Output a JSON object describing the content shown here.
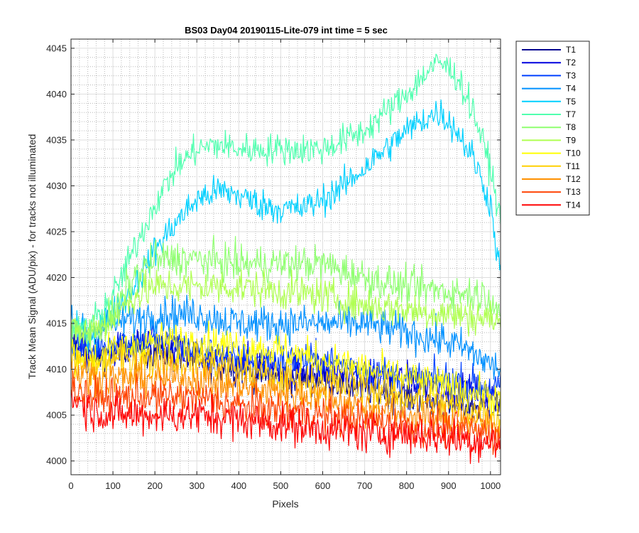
{
  "chart_data": {
    "type": "line",
    "title": "BS03 Day04 20190115-Lite-079 int time = 5 sec",
    "xlabel": "Pixels",
    "ylabel": "Track Mean Signal (ADU/pix) - for tracks not illuminated",
    "xlim": [
      0,
      1024
    ],
    "ylim": [
      3998.5,
      4046
    ],
    "xticks": [
      0,
      100,
      200,
      300,
      400,
      500,
      600,
      700,
      800,
      900,
      1000
    ],
    "yticks": [
      4000,
      4005,
      4010,
      4015,
      4020,
      4025,
      4030,
      4035,
      4040,
      4045
    ],
    "grid": "major and minor",
    "legend_position": "outside-top-right",
    "series": [
      {
        "name": "T1",
        "color": "#00008f",
        "noise": 1.3,
        "points": [
          [
            0,
            4013
          ],
          [
            50,
            4011
          ],
          [
            100,
            4012
          ],
          [
            200,
            4012
          ],
          [
            300,
            4011
          ],
          [
            400,
            4010
          ],
          [
            500,
            4009
          ],
          [
            600,
            4009
          ],
          [
            700,
            4008
          ],
          [
            800,
            4007
          ],
          [
            900,
            4006
          ],
          [
            1000,
            4006
          ],
          [
            1024,
            4006
          ]
        ]
      },
      {
        "name": "T2",
        "color": "#0000df",
        "noise": 1.3,
        "points": [
          [
            0,
            4013
          ],
          [
            50,
            4011
          ],
          [
            100,
            4012
          ],
          [
            200,
            4013
          ],
          [
            300,
            4011
          ],
          [
            400,
            4011
          ],
          [
            500,
            4010
          ],
          [
            600,
            4010
          ],
          [
            700,
            4009
          ],
          [
            800,
            4009
          ],
          [
            900,
            4008
          ],
          [
            1000,
            4007
          ],
          [
            1024,
            4007
          ]
        ]
      },
      {
        "name": "T3",
        "color": "#0040ff",
        "noise": 1.3,
        "points": [
          [
            0,
            4013
          ],
          [
            50,
            4012
          ],
          [
            100,
            4013
          ],
          [
            200,
            4013
          ],
          [
            300,
            4012
          ],
          [
            400,
            4011
          ],
          [
            500,
            4011
          ],
          [
            600,
            4011
          ],
          [
            700,
            4010
          ],
          [
            800,
            4009
          ],
          [
            900,
            4009
          ],
          [
            1000,
            4008
          ],
          [
            1024,
            4008
          ]
        ]
      },
      {
        "name": "T4",
        "color": "#0090ff",
        "noise": 1.4,
        "points": [
          [
            0,
            4015
          ],
          [
            50,
            4014
          ],
          [
            100,
            4015
          ],
          [
            150,
            4015.5
          ],
          [
            200,
            4016
          ],
          [
            300,
            4016
          ],
          [
            400,
            4015
          ],
          [
            500,
            4015
          ],
          [
            600,
            4015
          ],
          [
            700,
            4015
          ],
          [
            800,
            4014
          ],
          [
            900,
            4013
          ],
          [
            950,
            4012
          ],
          [
            1000,
            4010.5
          ],
          [
            1024,
            4010
          ]
        ]
      },
      {
        "name": "T5",
        "color": "#00d0ff",
        "noise": 1.2,
        "points": [
          [
            0,
            4014
          ],
          [
            50,
            4014
          ],
          [
            100,
            4016
          ],
          [
            150,
            4019
          ],
          [
            200,
            4023
          ],
          [
            250,
            4026
          ],
          [
            300,
            4028.5
          ],
          [
            350,
            4029.5
          ],
          [
            400,
            4029
          ],
          [
            450,
            4028
          ],
          [
            500,
            4027.5
          ],
          [
            550,
            4027.5
          ],
          [
            600,
            4028.5
          ],
          [
            650,
            4030
          ],
          [
            700,
            4032
          ],
          [
            750,
            4034
          ],
          [
            800,
            4036
          ],
          [
            850,
            4037.5
          ],
          [
            880,
            4038
          ],
          [
            920,
            4036
          ],
          [
            960,
            4033
          ],
          [
            1000,
            4028
          ],
          [
            1024,
            4020
          ]
        ]
      },
      {
        "name": "T7",
        "color": "#50ffaf",
        "noise": 1.2,
        "points": [
          [
            0,
            4014
          ],
          [
            50,
            4015
          ],
          [
            100,
            4018
          ],
          [
            150,
            4023
          ],
          [
            200,
            4028
          ],
          [
            250,
            4032
          ],
          [
            300,
            4034
          ],
          [
            350,
            4034.5
          ],
          [
            400,
            4034
          ],
          [
            450,
            4034
          ],
          [
            500,
            4034
          ],
          [
            550,
            4034
          ],
          [
            600,
            4034
          ],
          [
            650,
            4035
          ],
          [
            700,
            4036
          ],
          [
            750,
            4038
          ],
          [
            800,
            4040
          ],
          [
            850,
            4042.5
          ],
          [
            880,
            4043.5
          ],
          [
            920,
            4042
          ],
          [
            960,
            4038
          ],
          [
            1000,
            4032
          ],
          [
            1024,
            4026
          ]
        ]
      },
      {
        "name": "T8",
        "color": "#8fff70",
        "noise": 1.4,
        "points": [
          [
            0,
            4014
          ],
          [
            50,
            4014
          ],
          [
            100,
            4016
          ],
          [
            150,
            4020
          ],
          [
            200,
            4022
          ],
          [
            300,
            4022
          ],
          [
            400,
            4021.5
          ],
          [
            500,
            4021.5
          ],
          [
            600,
            4021.5
          ],
          [
            700,
            4020
          ],
          [
            800,
            4019
          ],
          [
            900,
            4018.5
          ],
          [
            1000,
            4018
          ],
          [
            1024,
            4016
          ]
        ]
      },
      {
        "name": "T9",
        "color": "#afff50",
        "noise": 1.4,
        "points": [
          [
            0,
            4014
          ],
          [
            50,
            4014
          ],
          [
            100,
            4015.5
          ],
          [
            150,
            4018
          ],
          [
            200,
            4019
          ],
          [
            300,
            4019
          ],
          [
            400,
            4019
          ],
          [
            500,
            4018.5
          ],
          [
            600,
            4018
          ],
          [
            700,
            4017
          ],
          [
            800,
            4016.5
          ],
          [
            900,
            4016
          ],
          [
            1000,
            4015.5
          ],
          [
            1024,
            4015
          ]
        ]
      },
      {
        "name": "T10",
        "color": "#ffff00",
        "noise": 1.4,
        "points": [
          [
            0,
            4012
          ],
          [
            50,
            4011
          ],
          [
            100,
            4012
          ],
          [
            200,
            4013
          ],
          [
            300,
            4013
          ],
          [
            400,
            4012.5
          ],
          [
            500,
            4012
          ],
          [
            600,
            4011
          ],
          [
            700,
            4010
          ],
          [
            800,
            4009
          ],
          [
            900,
            4008
          ],
          [
            1000,
            4007
          ],
          [
            1024,
            4006
          ]
        ]
      },
      {
        "name": "T11",
        "color": "#ffcf00",
        "noise": 1.4,
        "points": [
          [
            0,
            4011
          ],
          [
            50,
            4010
          ],
          [
            100,
            4011
          ],
          [
            200,
            4011
          ],
          [
            300,
            4011
          ],
          [
            400,
            4010
          ],
          [
            500,
            4009
          ],
          [
            600,
            4008.5
          ],
          [
            700,
            4008
          ],
          [
            800,
            4007
          ],
          [
            900,
            4006
          ],
          [
            1000,
            4005
          ],
          [
            1024,
            4004.5
          ]
        ]
      },
      {
        "name": "T12",
        "color": "#ff9000",
        "noise": 1.4,
        "points": [
          [
            0,
            4010
          ],
          [
            50,
            4009
          ],
          [
            100,
            4009
          ],
          [
            200,
            4009
          ],
          [
            300,
            4009
          ],
          [
            400,
            4008
          ],
          [
            500,
            4007.5
          ],
          [
            600,
            4007
          ],
          [
            700,
            4006
          ],
          [
            800,
            4005
          ],
          [
            900,
            4004.5
          ],
          [
            1000,
            4004
          ],
          [
            1024,
            4003.5
          ]
        ]
      },
      {
        "name": "T13",
        "color": "#ff4000",
        "noise": 1.4,
        "points": [
          [
            0,
            4008
          ],
          [
            50,
            4007
          ],
          [
            100,
            4007
          ],
          [
            200,
            4007
          ],
          [
            300,
            4007
          ],
          [
            400,
            4006
          ],
          [
            500,
            4005.5
          ],
          [
            600,
            4005
          ],
          [
            700,
            4004.5
          ],
          [
            800,
            4004
          ],
          [
            900,
            4003.5
          ],
          [
            1000,
            4003
          ],
          [
            1024,
            4002.5
          ]
        ]
      },
      {
        "name": "T14",
        "color": "#ff0000",
        "noise": 1.5,
        "points": [
          [
            0,
            4007
          ],
          [
            50,
            4005.5
          ],
          [
            100,
            4005
          ],
          [
            200,
            4005
          ],
          [
            300,
            4005
          ],
          [
            400,
            4004.5
          ],
          [
            500,
            4004
          ],
          [
            600,
            4003.5
          ],
          [
            700,
            4003
          ],
          [
            800,
            4003
          ],
          [
            900,
            4002.5
          ],
          [
            1000,
            4002
          ],
          [
            1024,
            4002
          ]
        ]
      }
    ]
  }
}
